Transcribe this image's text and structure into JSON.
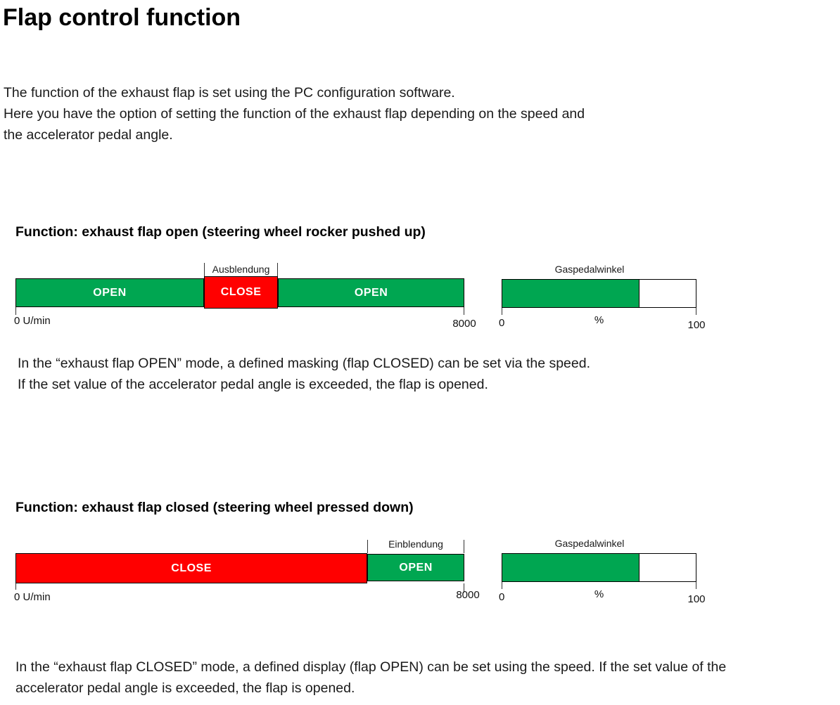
{
  "colors": {
    "green": "#00a651",
    "red": "#ff0000"
  },
  "page_title": "Flap control function",
  "intro": {
    "line1": "The function of the exhaust flap is set using the PC configuration software.",
    "line2": "Here you have the option of setting the function of the exhaust flap depending on the speed and",
    "line3": "the accelerator pedal angle."
  },
  "section_open": {
    "heading": "Function: exhaust flap open (steering wheel rocker pushed up)",
    "speed_chart": {
      "annotation": "Ausblendung",
      "seg1_label": "OPEN",
      "seg2_label": "CLOSE",
      "seg3_label": "OPEN",
      "axis_min": "0 U/min",
      "axis_max": "8000"
    },
    "pedal_chart": {
      "title": "Gaspedalwinkel",
      "axis_min": "0",
      "axis_unit": "%",
      "axis_max": "100"
    },
    "body": {
      "line1": "In the “exhaust flap OPEN” mode, a defined masking (flap CLOSED) can be set via the speed.",
      "line2": "If the set value of the accelerator pedal angle is exceeded, the flap is opened."
    }
  },
  "section_closed": {
    "heading": "Function: exhaust flap closed (steering wheel pressed down)",
    "speed_chart": {
      "annotation": "Einblendung",
      "seg1_label": "CLOSE",
      "seg2_label": "OPEN",
      "axis_min": "0 U/min",
      "axis_max": "8000"
    },
    "pedal_chart": {
      "title": "Gaspedalwinkel",
      "axis_min": "0",
      "axis_unit": "%",
      "axis_max": "100"
    },
    "body": {
      "line1": "In the “exhaust flap CLOSED” mode, a defined display (flap OPEN) can be set using the speed. If the set value of the",
      "line2": "accelerator pedal angle is exceeded, the flap is opened."
    }
  },
  "chart_data": [
    {
      "type": "bar",
      "title": "Speed bar - exhaust flap open mode",
      "axis": {
        "label_min": "0 U/min",
        "label_max": "8000",
        "range": [
          0,
          8000
        ]
      },
      "segments": [
        {
          "label": "OPEN",
          "from": 0,
          "to": 3360,
          "color": "#00a651"
        },
        {
          "label": "CLOSE",
          "annotation": "Ausblendung",
          "from": 3360,
          "to": 4680,
          "color": "#ff0000"
        },
        {
          "label": "OPEN",
          "from": 4680,
          "to": 8000,
          "color": "#00a651"
        }
      ]
    },
    {
      "type": "bar",
      "title": "Gaspedalwinkel - exhaust flap open mode",
      "axis": {
        "label_min": "0",
        "label_unit": "%",
        "label_max": "100",
        "range": [
          0,
          100
        ]
      },
      "fill_percent": 71,
      "fill_color": "#00a651"
    },
    {
      "type": "bar",
      "title": "Speed bar - exhaust flap closed mode",
      "axis": {
        "label_min": "0 U/min",
        "label_max": "8000",
        "range": [
          0,
          8000
        ]
      },
      "segments": [
        {
          "label": "CLOSE",
          "from": 0,
          "to": 6270,
          "color": "#ff0000"
        },
        {
          "label": "OPEN",
          "annotation": "Einblendung",
          "from": 6270,
          "to": 8000,
          "color": "#00a651"
        }
      ]
    },
    {
      "type": "bar",
      "title": "Gaspedalwinkel - exhaust flap closed mode",
      "axis": {
        "label_min": "0",
        "label_unit": "%",
        "label_max": "100",
        "range": [
          0,
          100
        ]
      },
      "fill_percent": 71,
      "fill_color": "#00a651"
    }
  ]
}
